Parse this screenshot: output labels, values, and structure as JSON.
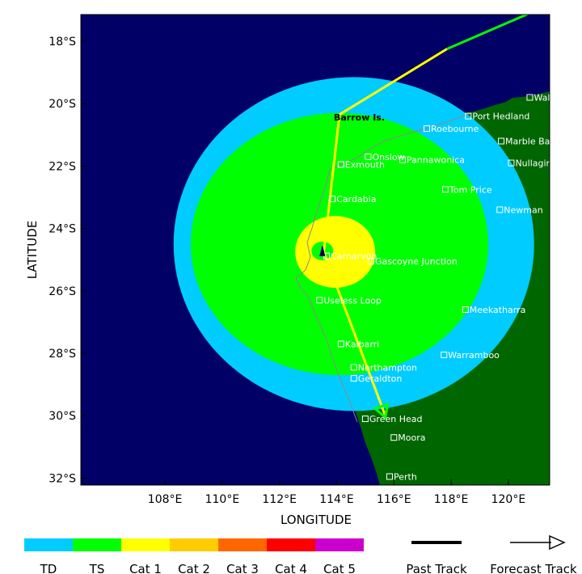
{
  "map": {
    "x_label": "LONGITUDE",
    "y_label": "LATITUDE",
    "lon_ticks": [
      "108°E",
      "110°E",
      "112°E",
      "114°E",
      "116°E",
      "118°E",
      "120°E"
    ],
    "lat_ticks": [
      "18°S",
      "20°S",
      "22°S",
      "24°S",
      "26°S",
      "28°S",
      "30°S",
      "32°S"
    ],
    "colors": {
      "ocean": "#000066",
      "land": "#006600",
      "td": "#00ccff",
      "ts": "#00ff00",
      "cat1": "#ffff00",
      "cat2": "#ffcc00",
      "cat3": "#ff6600",
      "cat4": "#ff0000",
      "cat5": "#cc00cc",
      "past_track": "#00ff00",
      "forecast_track": "#ffff00"
    },
    "places": [
      {
        "name": "Wallal Downs",
        "lon": 120.75,
        "lat": -19.8
      },
      {
        "name": "Port Hedland",
        "lon": 118.6,
        "lat": -20.4
      },
      {
        "name": "Roebourne",
        "lon": 117.15,
        "lat": -20.8
      },
      {
        "name": "Marble Bar",
        "lon": 119.75,
        "lat": -21.2
      },
      {
        "name": "Onslow",
        "lon": 115.1,
        "lat": -21.7
      },
      {
        "name": "Pannawonica",
        "lon": 116.3,
        "lat": -21.8
      },
      {
        "name": "Exmouth",
        "lon": 114.15,
        "lat": -21.95
      },
      {
        "name": "Nullagine",
        "lon": 120.1,
        "lat": -21.9
      },
      {
        "name": "Tom Price",
        "lon": 117.8,
        "lat": -22.75
      },
      {
        "name": "Cardabia",
        "lon": 113.85,
        "lat": -23.05
      },
      {
        "name": "Newman",
        "lon": 119.7,
        "lat": -23.4
      },
      {
        "name": "Carnarvon",
        "lon": 113.65,
        "lat": -24.88
      },
      {
        "name": "Gascoyne Junction",
        "lon": 115.2,
        "lat": -25.05
      },
      {
        "name": "Useless Loop",
        "lon": 113.4,
        "lat": -26.3
      },
      {
        "name": "Meekatharra",
        "lon": 118.5,
        "lat": -26.6
      },
      {
        "name": "Kalbarri",
        "lon": 114.15,
        "lat": -27.7
      },
      {
        "name": "Warramboo",
        "lon": 117.75,
        "lat": -28.05
      },
      {
        "name": "Northampton",
        "lon": 114.6,
        "lat": -28.45
      },
      {
        "name": "Geraldton",
        "lon": 114.6,
        "lat": -28.8
      },
      {
        "name": "Green Head",
        "lon": 115.0,
        "lat": -30.1
      },
      {
        "name": "Moora",
        "lon": 116.0,
        "lat": -30.7
      },
      {
        "name": "Perth",
        "lon": 115.85,
        "lat": -31.95
      }
    ],
    "barrow_label": "Barrow Is.",
    "past_track": [
      [
        121.0,
        -17.0
      ],
      [
        117.85,
        -18.25
      ]
    ],
    "forecast_track": [
      [
        117.85,
        -18.25
      ],
      [
        114.1,
        -20.35
      ],
      [
        113.55,
        -24.75
      ],
      [
        115.7,
        -30.0
      ]
    ],
    "storm_center": [
      113.5,
      -24.75
    ],
    "wind_field": [
      {
        "class": "td",
        "lon": 114.6,
        "lat": -24.5,
        "rx": 6.3,
        "ry": 5.35
      },
      {
        "class": "ts",
        "lon": 114.1,
        "lat": -24.5,
        "rx": 5.2,
        "ry": 4.2
      },
      {
        "class": "cat1",
        "lon": 113.95,
        "lat": -24.75,
        "rx": 1.4,
        "ry": 1.15
      },
      {
        "class": "ts",
        "lon": 113.5,
        "lat": -24.72,
        "rx": 0.38,
        "ry": 0.3
      }
    ]
  },
  "legend": {
    "classes": [
      {
        "label": "TD",
        "color": "#00ccff"
      },
      {
        "label": "TS",
        "color": "#00ff00"
      },
      {
        "label": "Cat 1",
        "color": "#ffff00"
      },
      {
        "label": "Cat 2",
        "color": "#ffcc00"
      },
      {
        "label": "Cat 3",
        "color": "#ff6600"
      },
      {
        "label": "Cat 4",
        "color": "#ff0000"
      },
      {
        "label": "Cat 5",
        "color": "#cc00cc"
      }
    ],
    "past_track_label": "Past Track",
    "forecast_track_label": "Forecast Track"
  }
}
